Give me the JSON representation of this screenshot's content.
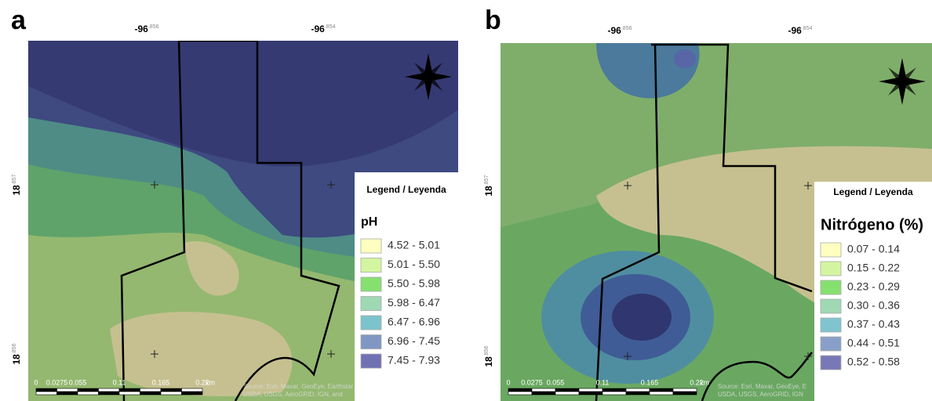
{
  "panels": [
    {
      "label": "a",
      "lon_labels": [
        {
          "deg": "-96",
          "dec": ".856"
        },
        {
          "deg": "-96",
          "dec": ".854"
        }
      ],
      "lat_labels": [
        {
          "deg": "18",
          "dec": ".857"
        },
        {
          "deg": "18",
          "dec": ".856"
        }
      ],
      "scale_labels": [
        "0",
        "0.0275",
        "0.055",
        "0.11",
        "0.165",
        "0.22",
        "km"
      ],
      "attribution": [
        "Source: Esri, Maxar, GeoEye, Earthstar",
        "USDA, USGS, AeroGRID, IGN, and"
      ],
      "legend": {
        "title": "Legend / Leyenda",
        "variable": "pH",
        "items": [
          {
            "label": "4.52 - 5.01",
            "color": "#ffffc0"
          },
          {
            "label": "5.01 - 5.50",
            "color": "#d4f5a0"
          },
          {
            "label": "5.50 - 5.98",
            "color": "#86e070"
          },
          {
            "label": "5.98 - 6.47",
            "color": "#9fd9b4"
          },
          {
            "label": "6.47 - 6.96",
            "color": "#7cc4cc"
          },
          {
            "label": "6.96 - 7.45",
            "color": "#8097c4"
          },
          {
            "label": "7.45 - 7.93",
            "color": "#7070b4"
          }
        ]
      }
    },
    {
      "label": "b",
      "lon_labels": [
        {
          "deg": "-96",
          "dec": ".856"
        },
        {
          "deg": "-96",
          "dec": ".854"
        }
      ],
      "lat_labels": [
        {
          "deg": "18",
          "dec": ".857"
        },
        {
          "deg": "18",
          "dec": ".856"
        }
      ],
      "scale_labels": [
        "0",
        "0.0275",
        "0.055",
        "0.11",
        "0.165",
        "0.22",
        "km"
      ],
      "attribution": [
        "Source: Esri, Maxar, GeoEye, E",
        "USDA, USGS, AeroGRID, IGN"
      ],
      "legend": {
        "title": "Legend / Leyenda",
        "variable": "Nitrógeno (%)",
        "items": [
          {
            "label": "0.07 - 0.14",
            "color": "#ffffc0"
          },
          {
            "label": "0.15 - 0.22",
            "color": "#d4f5a0"
          },
          {
            "label": "0.23 - 0.29",
            "color": "#86e070"
          },
          {
            "label": "0.30 - 0.36",
            "color": "#9fd9b4"
          },
          {
            "label": "0.37 - 0.43",
            "color": "#80c4d0"
          },
          {
            "label": "0.44 - 0.51",
            "color": "#88a0c8"
          },
          {
            "label": "0.52 - 0.58",
            "color": "#7878b8"
          }
        ]
      }
    }
  ]
}
